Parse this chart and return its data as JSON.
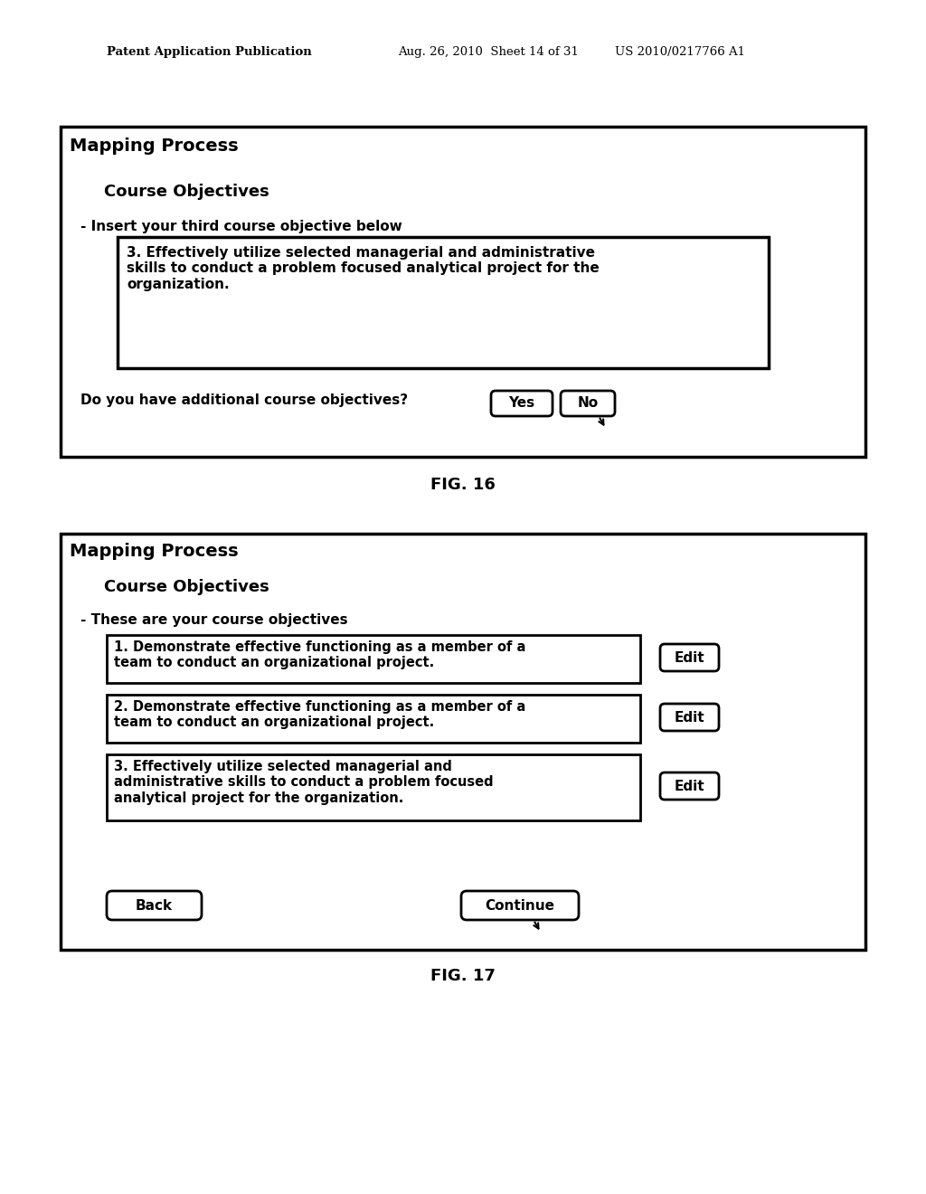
{
  "bg_color": "#ffffff",
  "header_text_left": "Patent Application Publication",
  "header_text_mid": "Aug. 26, 2010  Sheet 14 of 31",
  "header_text_right": "US 2010/0217766 A1",
  "fig16": {
    "title": "Mapping Process",
    "subtitle": "Course Objectives",
    "instruction": "- Insert your third course objective below",
    "text_box_content": "3. Effectively utilize selected managerial and administrative\nskills to conduct a problem focused analytical project for the\norganization.",
    "question": "Do you have additional course objectives?",
    "btn_yes": "Yes",
    "btn_no": "No",
    "caption": "FIG. 16"
  },
  "fig17": {
    "title": "Mapping Process",
    "subtitle": "Course Objectives",
    "instruction": "- These are your course objectives",
    "obj1": "1. Demonstrate effective functioning as a member of a\nteam to conduct an organizational project.",
    "obj2": "2. Demonstrate effective functioning as a member of a\nteam to conduct an organizational project.",
    "obj3": "3. Effectively utilize selected managerial and\nadministrative skills to conduct a problem focused\nanalytical project for the organization.",
    "btn_back": "Back",
    "btn_continue": "Continue",
    "btn_edit": "Edit",
    "caption": "FIG. 17"
  }
}
